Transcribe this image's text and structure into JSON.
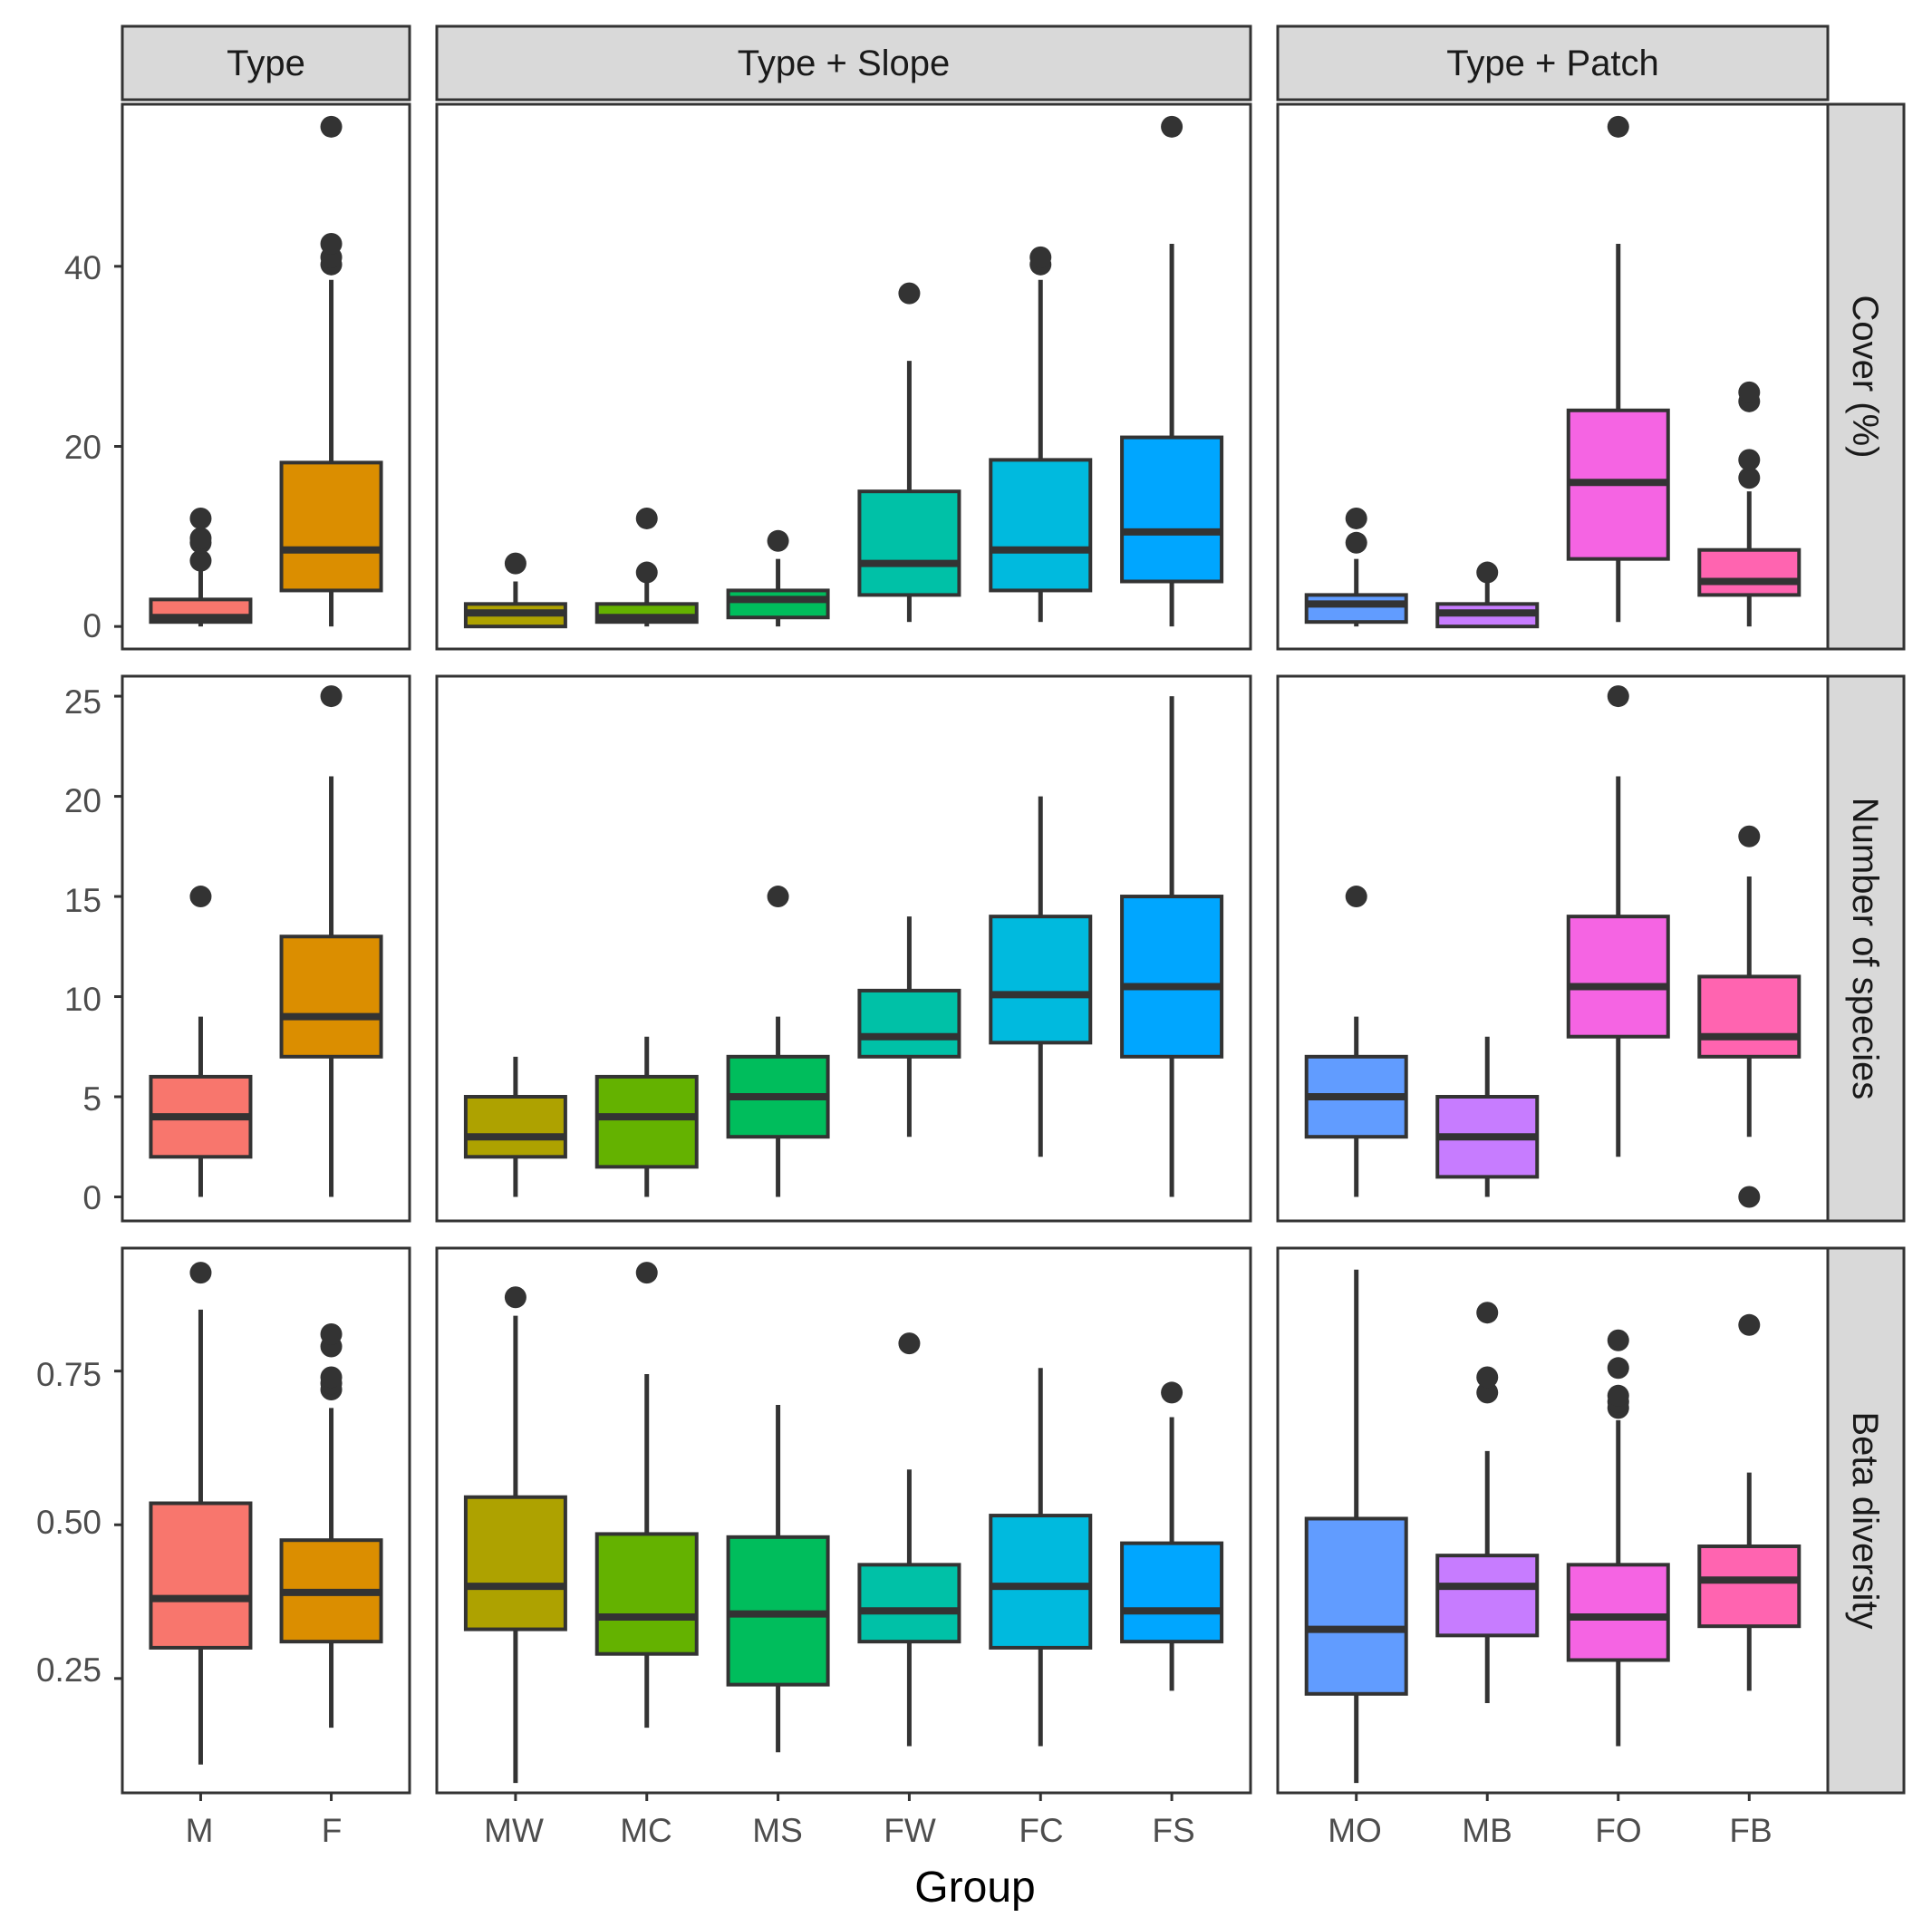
{
  "chart_data": {
    "type": "boxplot",
    "xlabel": "Group",
    "columns": [
      {
        "label": "Type",
        "categories": [
          "M",
          "F"
        ]
      },
      {
        "label": "Type + Slope",
        "categories": [
          "MW",
          "MC",
          "MS",
          "FW",
          "FC",
          "FS"
        ]
      },
      {
        "label": "Type + Patch",
        "categories": [
          "MO",
          "MB",
          "FO",
          "FB"
        ]
      }
    ],
    "colors": {
      "M": "#F8766D",
      "F": "#DB8E00",
      "MW": "#AEA200",
      "MC": "#64B200",
      "MS": "#00BD5C",
      "FW": "#00C1A7",
      "FC": "#00BADE",
      "FS": "#00A6FF",
      "MO": "#619CFF",
      "MB": "#C77CFF",
      "FO": "#F564E3",
      "FB": "#FF64B0"
    },
    "rows": [
      {
        "label": "Cover (%)",
        "ylim": [
          -2.5,
          58
        ],
        "ticks": [
          0,
          20,
          40
        ],
        "tick_labels": [
          "0",
          "20",
          "40"
        ],
        "boxes": {
          "M": {
            "min": 0,
            "q1": 0.5,
            "median": 1,
            "q3": 3,
            "max": 7,
            "outliers": [
              7.3,
              9.3,
              9.8,
              12
            ]
          },
          "F": {
            "min": 0,
            "q1": 4,
            "median": 8.5,
            "q3": 18.2,
            "max": 38.5,
            "outliers": [
              40.2,
              41,
              42.5,
              55.5
            ]
          },
          "MW": {
            "min": 0,
            "q1": 0,
            "median": 1.5,
            "q3": 2.5,
            "max": 5,
            "outliers": [
              7
            ]
          },
          "MC": {
            "min": 0,
            "q1": 0.5,
            "median": 1,
            "q3": 2.5,
            "max": 5,
            "outliers": [
              6,
              12
            ]
          },
          "MS": {
            "min": 0,
            "q1": 1,
            "median": 3,
            "q3": 4,
            "max": 7.5,
            "outliers": [
              9.5
            ]
          },
          "FW": {
            "min": 0.5,
            "q1": 3.5,
            "median": 7,
            "q3": 15,
            "max": 29.5,
            "outliers": [
              37
            ]
          },
          "FC": {
            "min": 0.5,
            "q1": 4,
            "median": 8.5,
            "q3": 18.5,
            "max": 38.5,
            "outliers": [
              40.2,
              41
            ]
          },
          "FS": {
            "min": 0,
            "q1": 5,
            "median": 10.5,
            "q3": 21,
            "max": 42.5,
            "outliers": [
              55.5
            ]
          },
          "MO": {
            "min": 0,
            "q1": 0.5,
            "median": 2.5,
            "q3": 3.5,
            "max": 7.5,
            "outliers": [
              9.3,
              12
            ]
          },
          "MB": {
            "min": 0,
            "q1": 0,
            "median": 1.5,
            "q3": 2.5,
            "max": 5,
            "outliers": [
              6
            ]
          },
          "FO": {
            "min": 0.5,
            "q1": 7.5,
            "median": 16,
            "q3": 24,
            "max": 42.5,
            "outliers": [
              55.5
            ]
          },
          "FB": {
            "min": 0,
            "q1": 3.5,
            "median": 5,
            "q3": 8.5,
            "max": 15,
            "outliers": [
              16.5,
              18.5,
              25,
              26
            ]
          }
        }
      },
      {
        "label": "Number of species",
        "ylim": [
          -1.2,
          26
        ],
        "ticks": [
          0,
          5,
          10,
          15,
          20,
          25
        ],
        "tick_labels": [
          "0",
          "5",
          "10",
          "15",
          "20",
          "25"
        ],
        "boxes": {
          "M": {
            "min": 0,
            "q1": 2,
            "median": 4,
            "q3": 6,
            "max": 9,
            "outliers": [
              15
            ]
          },
          "F": {
            "min": 0,
            "q1": 7,
            "median": 9,
            "q3": 13,
            "max": 21,
            "outliers": [
              25
            ]
          },
          "MW": {
            "min": 0,
            "q1": 2,
            "median": 3,
            "q3": 5,
            "max": 7,
            "outliers": []
          },
          "MC": {
            "min": 0,
            "q1": 1.5,
            "median": 4,
            "q3": 6,
            "max": 8,
            "outliers": []
          },
          "MS": {
            "min": 0,
            "q1": 3,
            "median": 5,
            "q3": 7,
            "max": 9,
            "outliers": [
              15
            ]
          },
          "FW": {
            "min": 3,
            "q1": 7,
            "median": 8,
            "q3": 10.3,
            "max": 14,
            "outliers": []
          },
          "FC": {
            "min": 2,
            "q1": 7.7,
            "median": 10.1,
            "q3": 14,
            "max": 20,
            "outliers": []
          },
          "FS": {
            "min": 0,
            "q1": 7,
            "median": 10.5,
            "q3": 15,
            "max": 25,
            "outliers": []
          },
          "MO": {
            "min": 0,
            "q1": 3,
            "median": 5,
            "q3": 7,
            "max": 9,
            "outliers": [
              15
            ]
          },
          "MB": {
            "min": 0,
            "q1": 1,
            "median": 3,
            "q3": 5,
            "max": 8,
            "outliers": []
          },
          "FO": {
            "min": 2,
            "q1": 8,
            "median": 10.5,
            "q3": 14,
            "max": 21,
            "outliers": [
              25
            ]
          },
          "FB": {
            "min": 3,
            "q1": 7,
            "median": 8,
            "q3": 11,
            "max": 16,
            "outliers": [
              0,
              18
            ]
          }
        }
      },
      {
        "label": "Beta diversity",
        "ylim": [
          0.064,
          0.95
        ],
        "ticks": [
          0.25,
          0.5,
          0.75
        ],
        "tick_labels": [
          "0.25",
          "0.50",
          "0.75"
        ],
        "boxes": {
          "M": {
            "min": 0.11,
            "q1": 0.3,
            "median": 0.38,
            "q3": 0.535,
            "max": 0.85,
            "outliers": [
              0.91
            ]
          },
          "F": {
            "min": 0.17,
            "q1": 0.31,
            "median": 0.39,
            "q3": 0.475,
            "max": 0.69,
            "outliers": [
              0.72,
              0.73,
              0.74,
              0.79,
              0.81
            ]
          },
          "MW": {
            "min": 0.08,
            "q1": 0.33,
            "median": 0.4,
            "q3": 0.545,
            "max": 0.84,
            "outliers": [
              0.87
            ]
          },
          "MC": {
            "min": 0.17,
            "q1": 0.29,
            "median": 0.35,
            "q3": 0.485,
            "max": 0.745,
            "outliers": [
              0.91
            ]
          },
          "MS": {
            "min": 0.13,
            "q1": 0.24,
            "median": 0.355,
            "q3": 0.48,
            "max": 0.695,
            "outliers": []
          },
          "FW": {
            "min": 0.14,
            "q1": 0.31,
            "median": 0.36,
            "q3": 0.435,
            "max": 0.59,
            "outliers": [
              0.795
            ]
          },
          "FC": {
            "min": 0.14,
            "q1": 0.3,
            "median": 0.4,
            "q3": 0.515,
            "max": 0.755,
            "outliers": []
          },
          "FS": {
            "min": 0.23,
            "q1": 0.31,
            "median": 0.36,
            "q3": 0.47,
            "max": 0.675,
            "outliers": [
              0.715
            ]
          },
          "MO": {
            "min": 0.08,
            "q1": 0.225,
            "median": 0.33,
            "q3": 0.51,
            "max": 0.915,
            "outliers": []
          },
          "MB": {
            "min": 0.21,
            "q1": 0.32,
            "median": 0.4,
            "q3": 0.45,
            "max": 0.62,
            "outliers": [
              0.715,
              0.74,
              0.845
            ]
          },
          "FO": {
            "min": 0.14,
            "q1": 0.28,
            "median": 0.35,
            "q3": 0.435,
            "max": 0.67,
            "outliers": [
              0.69,
              0.7,
              0.71,
              0.755,
              0.8
            ]
          },
          "FB": {
            "min": 0.23,
            "q1": 0.335,
            "median": 0.41,
            "q3": 0.465,
            "max": 0.585,
            "outliers": [
              0.825
            ]
          }
        }
      }
    ]
  }
}
